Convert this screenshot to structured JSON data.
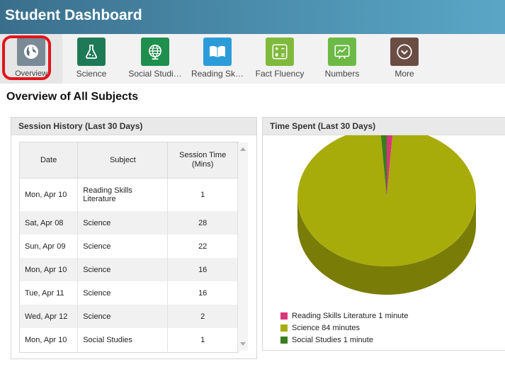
{
  "header": {
    "title": "Student Dashboard"
  },
  "nav": {
    "items": [
      {
        "label": "Overview",
        "color": "#7a8a96",
        "icon": "globe-icon"
      },
      {
        "label": "Science",
        "color": "#1e7a56",
        "icon": "flask-icon"
      },
      {
        "label": "Social Studi…",
        "color": "#1f8f4e",
        "icon": "globe-grid-icon"
      },
      {
        "label": "Reading Sk…",
        "color": "#2c9cd8",
        "icon": "book-icon"
      },
      {
        "label": "Fact Fluency",
        "color": "#7fba3c",
        "icon": "calculator-icon"
      },
      {
        "label": "Numbers",
        "color": "#6cba45",
        "icon": "chart-board-icon"
      },
      {
        "label": "More",
        "color": "#6b4d43",
        "icon": "chevron-down-icon"
      }
    ]
  },
  "page": {
    "heading": "Overview of All Subjects"
  },
  "history": {
    "title": "Session History (Last 30 Days)",
    "columns": [
      "Date",
      "Subject",
      "Session Time (Mins)"
    ],
    "rows": [
      {
        "date": "Mon, Apr 10",
        "subject": "Reading Skills Literature",
        "time": "1"
      },
      {
        "date": "Sat, Apr 08",
        "subject": "Science",
        "time": "28"
      },
      {
        "date": "Sun, Apr 09",
        "subject": "Science",
        "time": "22"
      },
      {
        "date": "Mon, Apr 10",
        "subject": "Science",
        "time": "16"
      },
      {
        "date": "Tue, Apr 11",
        "subject": "Science",
        "time": "16"
      },
      {
        "date": "Wed, Apr 12",
        "subject": "Science",
        "time": "2"
      },
      {
        "date": "Mon, Apr 10",
        "subject": "Social Studies",
        "time": "1"
      }
    ]
  },
  "timespent": {
    "title": "Time Spent (Last 30 Days)"
  },
  "chart_data": {
    "type": "pie",
    "legend_position": "bottom-left",
    "categories": [
      "Reading Skills Literature",
      "Science",
      "Social Studies"
    ],
    "values": [
      1,
      84,
      1
    ],
    "colors": [
      "#d9367a",
      "#a8ac0a",
      "#3a7d1e"
    ],
    "legend_labels": [
      "Reading Skills Literature 1 minute",
      "Science 84 minutes",
      "Social Studies 1 minute"
    ]
  }
}
